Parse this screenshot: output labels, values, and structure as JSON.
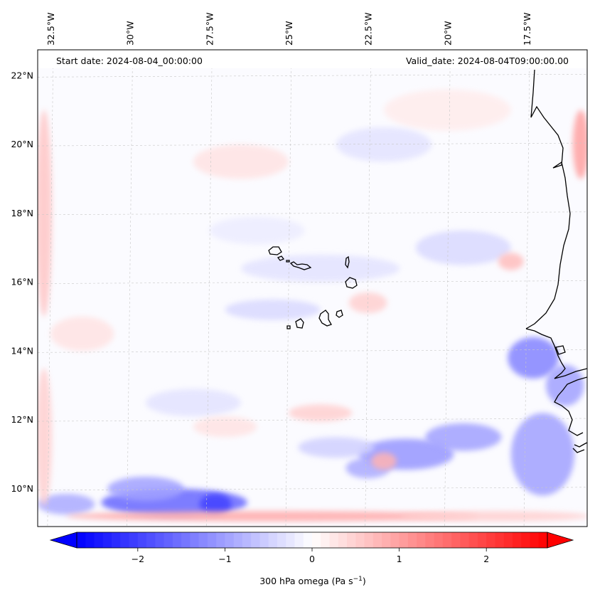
{
  "header": {
    "start_date": "Start date: 2024-08-04_00:00:00",
    "valid_date": "Valid_date: 2024-08-04T09:00:00.00"
  },
  "map": {
    "lon_range": [
      -32.9,
      -15.6
    ],
    "lat_range": [
      8.9,
      22.75
    ],
    "lon_ticks": [
      {
        "value": -32.5,
        "label": "32.5°W"
      },
      {
        "value": -30.0,
        "label": "30°W"
      },
      {
        "value": -27.5,
        "label": "27.5°W"
      },
      {
        "value": -25.0,
        "label": "25°W"
      },
      {
        "value": -22.5,
        "label": "22.5°W"
      },
      {
        "value": -20.0,
        "label": "20°W"
      },
      {
        "value": -17.5,
        "label": "17.5°W"
      }
    ],
    "lat_ticks": [
      {
        "value": 10,
        "label": "10°N"
      },
      {
        "value": 12,
        "label": "12°N"
      },
      {
        "value": 14,
        "label": "14°N"
      },
      {
        "value": 16,
        "label": "16°N"
      },
      {
        "value": 18,
        "label": "18°N"
      },
      {
        "value": 20,
        "label": "20°N"
      },
      {
        "value": 22,
        "label": "22°N"
      }
    ],
    "gridlines": true,
    "colors": {
      "negative": "#0000ff",
      "zero": "#ffffff",
      "positive": "#ff0000",
      "coastline": "#000000"
    },
    "omega_features": [
      {
        "lon": -28.6,
        "lat": 9.6,
        "rx": 2.3,
        "ry": 0.4,
        "value": -1.6
      },
      {
        "lon": -29.5,
        "lat": 10.0,
        "rx": 1.2,
        "ry": 0.35,
        "value": -1.0
      },
      {
        "lon": -32.0,
        "lat": 9.55,
        "rx": 0.9,
        "ry": 0.3,
        "value": -0.9
      },
      {
        "lon": -27.3,
        "lat": 9.55,
        "rx": 0.5,
        "ry": 0.3,
        "value": -2.0
      },
      {
        "lon": -25.5,
        "lat": 9.2,
        "rx": 6.5,
        "ry": 0.15,
        "value": 0.9
      },
      {
        "lon": -18.5,
        "lat": 9.2,
        "rx": 3.0,
        "ry": 0.15,
        "value": 0.5
      },
      {
        "lon": -21.3,
        "lat": 11.0,
        "rx": 1.5,
        "ry": 0.45,
        "value": -1.1
      },
      {
        "lon": -19.5,
        "lat": 11.5,
        "rx": 1.2,
        "ry": 0.4,
        "value": -1.0
      },
      {
        "lon": -17.0,
        "lat": 11.0,
        "rx": 1.0,
        "ry": 1.2,
        "value": -1.0
      },
      {
        "lon": -17.3,
        "lat": 13.8,
        "rx": 0.8,
        "ry": 0.6,
        "value": -1.3
      },
      {
        "lon": -16.3,
        "lat": 13.0,
        "rx": 0.6,
        "ry": 0.6,
        "value": -1.0
      },
      {
        "lon": -22.5,
        "lat": 10.6,
        "rx": 0.7,
        "ry": 0.3,
        "value": -0.9
      },
      {
        "lon": -23.5,
        "lat": 11.2,
        "rx": 1.2,
        "ry": 0.3,
        "value": -0.5
      },
      {
        "lon": -22.0,
        "lat": 10.8,
        "rx": 0.4,
        "ry": 0.25,
        "value": 0.8
      },
      {
        "lon": -24.0,
        "lat": 12.2,
        "rx": 1.0,
        "ry": 0.25,
        "value": 0.5
      },
      {
        "lon": -25.5,
        "lat": 15.2,
        "rx": 1.5,
        "ry": 0.3,
        "value": -0.4
      },
      {
        "lon": -24.0,
        "lat": 16.4,
        "rx": 2.5,
        "ry": 0.4,
        "value": -0.3
      },
      {
        "lon": -19.5,
        "lat": 17.0,
        "rx": 1.5,
        "ry": 0.5,
        "value": -0.4
      },
      {
        "lon": -22.5,
        "lat": 15.4,
        "rx": 0.6,
        "ry": 0.3,
        "value": 0.5
      },
      {
        "lon": -32.7,
        "lat": 18.0,
        "rx": 0.25,
        "ry": 3.0,
        "value": 0.6
      },
      {
        "lon": -32.7,
        "lat": 11.5,
        "rx": 0.25,
        "ry": 2.0,
        "value": 0.5
      },
      {
        "lon": -15.8,
        "lat": 20.0,
        "rx": 0.25,
        "ry": 1.0,
        "value": 1.0
      },
      {
        "lon": -31.5,
        "lat": 14.5,
        "rx": 1.0,
        "ry": 0.5,
        "value": 0.3
      },
      {
        "lon": -20.0,
        "lat": 21.0,
        "rx": 2.0,
        "ry": 0.6,
        "value": 0.2
      },
      {
        "lon": -26.5,
        "lat": 19.5,
        "rx": 1.5,
        "ry": 0.5,
        "value": 0.3
      },
      {
        "lon": -22.0,
        "lat": 20.0,
        "rx": 1.5,
        "ry": 0.5,
        "value": -0.3
      },
      {
        "lon": -28.0,
        "lat": 12.5,
        "rx": 1.5,
        "ry": 0.4,
        "value": -0.3
      },
      {
        "lon": -27.0,
        "lat": 11.8,
        "rx": 1.0,
        "ry": 0.3,
        "value": 0.3
      },
      {
        "lon": -18.0,
        "lat": 16.6,
        "rx": 0.4,
        "ry": 0.25,
        "value": 0.7
      },
      {
        "lon": -26.0,
        "lat": 17.5,
        "rx": 1.5,
        "ry": 0.4,
        "value": -0.2
      }
    ]
  },
  "colorbar": {
    "range": [
      -2.7,
      2.7
    ],
    "ticks": [
      {
        "value": -2,
        "label": "−2"
      },
      {
        "value": -1,
        "label": "−1"
      },
      {
        "value": 0,
        "label": "0"
      },
      {
        "value": 1,
        "label": "1"
      },
      {
        "value": 2,
        "label": "2"
      }
    ],
    "label": "300 hPa omega (Pa s",
    "label_exponent": "−1",
    "label_close": ")"
  }
}
